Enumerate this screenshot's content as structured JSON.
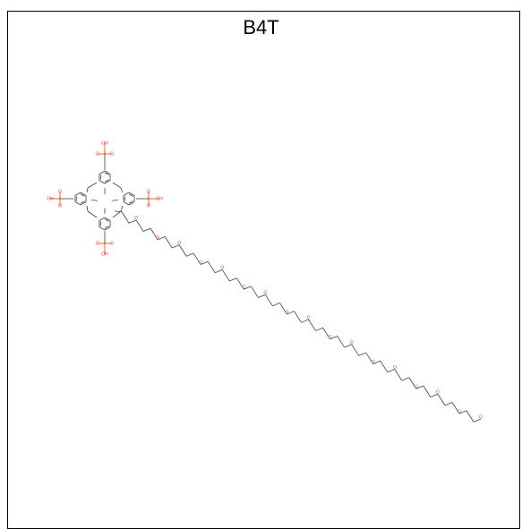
{
  "title": "B4T",
  "colors": {
    "bond": "#404040",
    "oxygen": "#ff3333",
    "sulfur": "#c8a400",
    "frame": "#000000",
    "background": "#ffffff"
  },
  "molecule": {
    "sulfonate_groups": [
      {
        "oh_label": "OH",
        "o_label": "O",
        "s_label": "S"
      },
      {
        "oh_label": "OH",
        "o_label": "O",
        "s_label": "S"
      },
      {
        "oh_label": "OH",
        "o_label": "O",
        "s_label": "S"
      },
      {
        "oh_label": "OH",
        "o_label": "O",
        "s_label": "S"
      }
    ],
    "chain_oxygen_count": 17,
    "chain_oxygen_label": "O"
  }
}
